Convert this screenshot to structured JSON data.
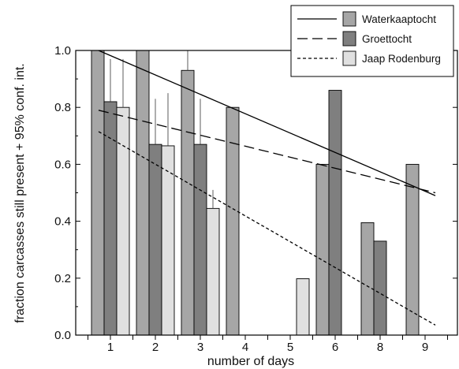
{
  "chart_data": {
    "type": "bar",
    "categories": [
      "1",
      "2",
      "3",
      "4",
      "5",
      "6",
      "8",
      "9"
    ],
    "xlabel": "number of days",
    "ylabel": "fraction carcasses still present + 95% conf. int.",
    "ylim": [
      0,
      1.0
    ],
    "yticks": [
      "0.0",
      "0.2",
      "0.4",
      "0.6",
      "0.8",
      "1.0"
    ],
    "grid": false,
    "legend_position": "top-right",
    "series": [
      {
        "name": "Waterkaaptocht",
        "color": "#a6a6a6",
        "line_style": "solid",
        "values": [
          1.0,
          1.0,
          0.93,
          0.8,
          null,
          0.6,
          0.395,
          0.6
        ],
        "ci_upper": [
          null,
          null,
          1.0,
          null,
          null,
          null,
          null,
          null
        ],
        "trend": [
          1.0,
          0.49
        ]
      },
      {
        "name": "Groettocht",
        "color": "#7f7f7f",
        "line_style": "long-dash",
        "values": [
          0.82,
          0.67,
          0.67,
          null,
          null,
          0.86,
          0.33,
          null
        ],
        "ci_upper": [
          0.97,
          0.83,
          0.83,
          null,
          null,
          null,
          null,
          null
        ],
        "trend": [
          0.79,
          0.5
        ]
      },
      {
        "name": "Jaap Rodenburg",
        "color": "#e0e0e0",
        "line_style": "short-dash",
        "values": [
          0.8,
          0.665,
          0.445,
          null,
          0.198,
          null,
          null,
          null
        ],
        "ci_upper": [
          0.97,
          0.85,
          0.51,
          null,
          null,
          null,
          null,
          null
        ],
        "trend": [
          0.715,
          0.035
        ]
      }
    ]
  }
}
